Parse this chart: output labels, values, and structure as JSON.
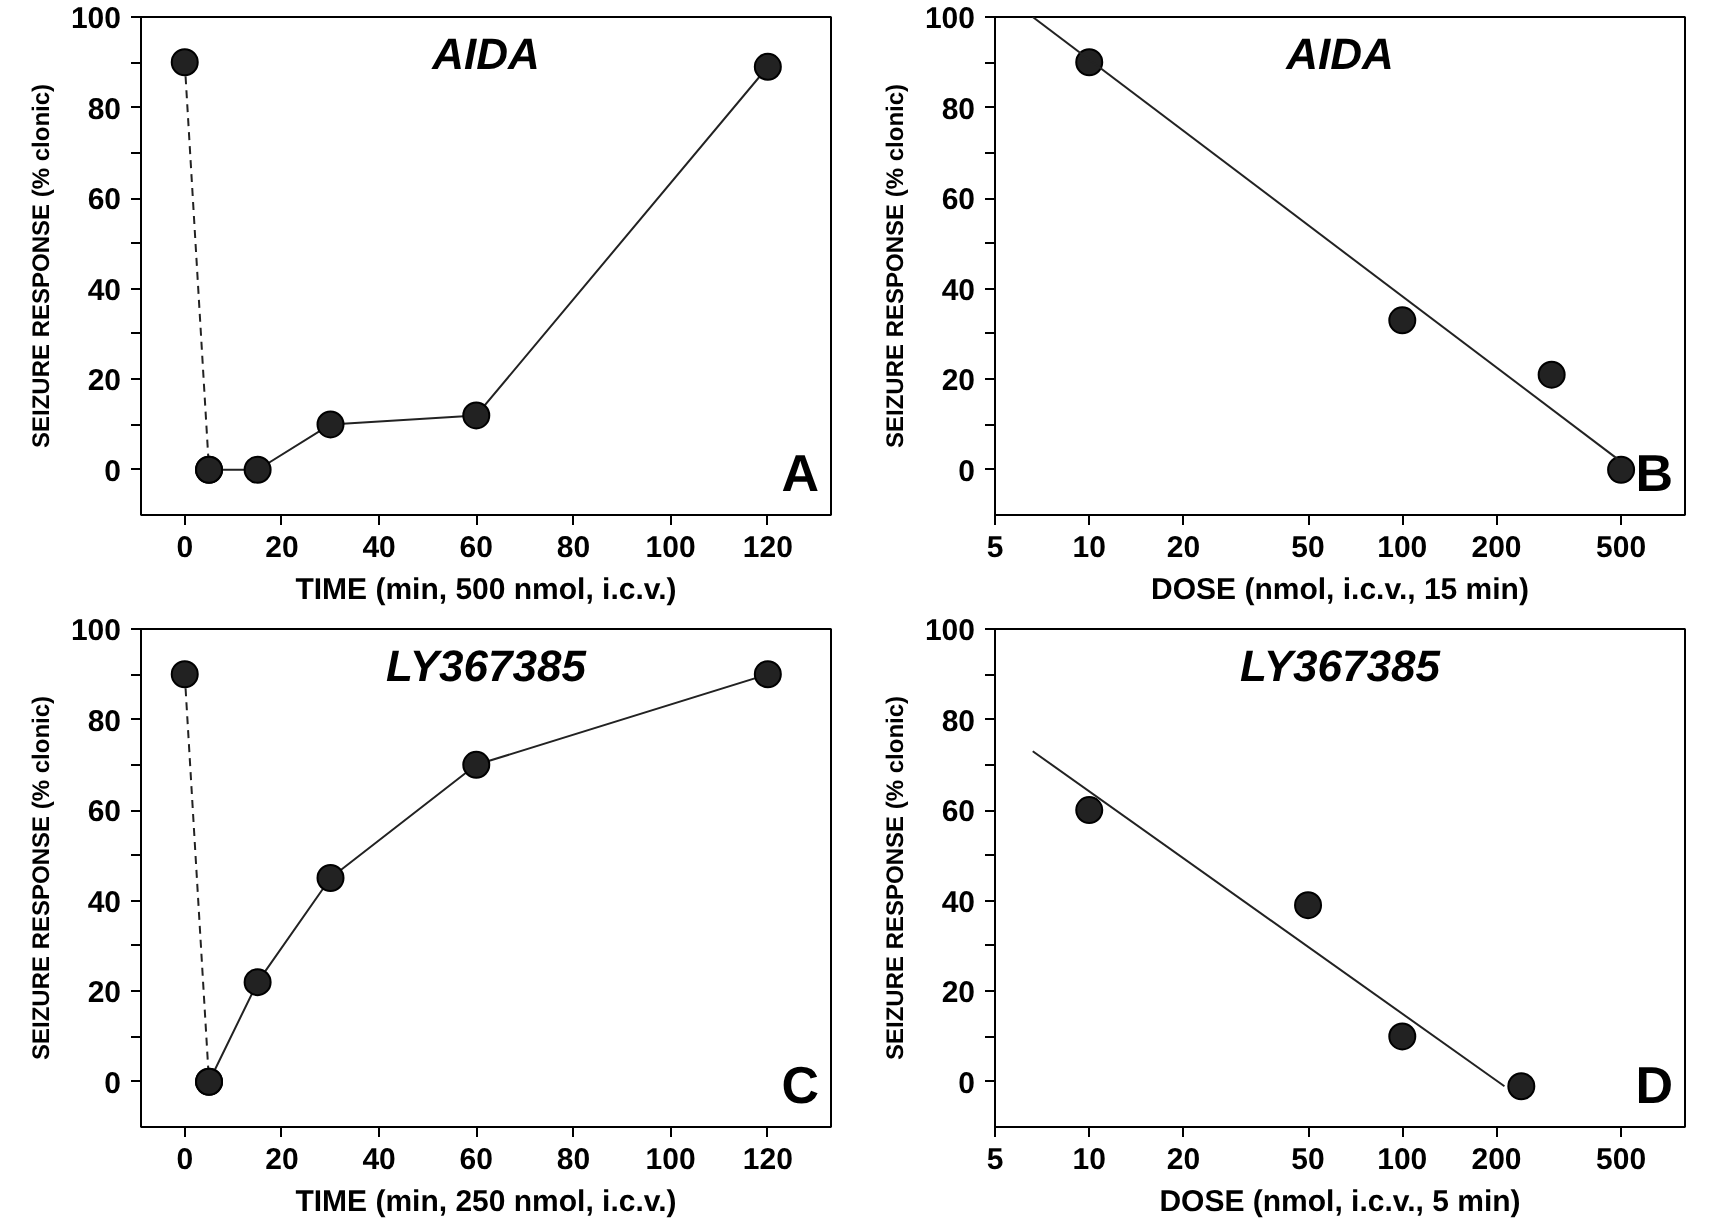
{
  "chart_data": [
    {
      "type": "line",
      "title": "AIDA",
      "xlabel": "TIME (min, 500 nmol, i.c.v.)",
      "ylabel": "SEIZURE RESPONSE (% clonic)",
      "annotations": [
        "A"
      ],
      "xlim": [
        -9,
        133
      ],
      "ylim": [
        -10,
        100
      ],
      "xticks": [
        0,
        20,
        40,
        60,
        80,
        100,
        120
      ],
      "yticks": [
        0,
        {
          "value": 10,
          "label": null
        },
        20,
        {
          "value": 30,
          "label": null
        },
        40,
        {
          "value": 50,
          "label": null
        },
        60,
        {
          "value": 70,
          "label": null
        },
        80,
        {
          "value": 90,
          "label": null
        },
        100
      ],
      "series": [
        {
          "x": [
            0,
            5
          ],
          "values": [
            90,
            0
          ],
          "color": "#222222",
          "marker": "circle",
          "line_style": "dashed"
        },
        {
          "x": [
            5,
            15,
            30,
            60,
            120
          ],
          "values": [
            0,
            0,
            10,
            12,
            89
          ],
          "color": "#222222",
          "marker": "circle",
          "line_style": "solid"
        }
      ]
    },
    {
      "type": "scatter",
      "log": "x",
      "title": "AIDA",
      "xlabel": "DOSE (nmol, i.c.v., 15 min)",
      "ylabel": "SEIZURE RESPONSE (% clonic)",
      "annotations": [
        "B"
      ],
      "xlim": [
        5,
        800
      ],
      "ylim": [
        -10,
        100
      ],
      "xticks": [
        5,
        10,
        20,
        50,
        100,
        200,
        500
      ],
      "yticks": [
        0,
        {
          "value": 10,
          "label": null
        },
        20,
        {
          "value": 30,
          "label": null
        },
        40,
        {
          "value": 50,
          "label": null
        },
        60,
        {
          "value": 70,
          "label": null
        },
        80,
        {
          "value": 90,
          "label": null
        },
        100
      ],
      "series": [
        {
          "x": [
            10,
            100,
            300,
            500
          ],
          "values": [
            90,
            33,
            21,
            0
          ],
          "color": "#222222",
          "marker": "circle"
        },
        {
          "type": "line",
          "x": [
            6.6,
            495
          ],
          "values": [
            100,
            2
          ],
          "color": "#222222",
          "marker": "none",
          "line_style": "solid"
        }
      ]
    },
    {
      "type": "line",
      "title": "LY367385",
      "xlabel": "TIME (min, 250 nmol, i.c.v.)",
      "ylabel": "SEIZURE RESPONSE (% clonic)",
      "annotations": [
        "C"
      ],
      "xlim": [
        -9,
        133
      ],
      "ylim": [
        -10,
        100
      ],
      "xticks": [
        0,
        20,
        40,
        60,
        80,
        100,
        120
      ],
      "yticks": [
        0,
        {
          "value": 10,
          "label": null
        },
        20,
        {
          "value": 30,
          "label": null
        },
        40,
        {
          "value": 50,
          "label": null
        },
        60,
        {
          "value": 70,
          "label": null
        },
        80,
        {
          "value": 90,
          "label": null
        },
        100
      ],
      "series": [
        {
          "x": [
            0,
            5
          ],
          "values": [
            90,
            0
          ],
          "color": "#222222",
          "marker": "circle",
          "line_style": "dashed"
        },
        {
          "x": [
            5,
            15,
            30,
            60,
            120
          ],
          "values": [
            0,
            22,
            45,
            70,
            90
          ],
          "color": "#222222",
          "marker": "circle",
          "line_style": "solid"
        }
      ]
    },
    {
      "type": "scatter",
      "log": "x",
      "title": "LY367385",
      "xlabel": "DOSE (nmol, i.c.v., 5 min)",
      "ylabel": "SEIZURE RESPONSE (% clonic)",
      "annotations": [
        "D"
      ],
      "xlim": [
        5,
        800
      ],
      "ylim": [
        -10,
        100
      ],
      "xticks": [
        5,
        10,
        20,
        50,
        100,
        200,
        500
      ],
      "yticks": [
        0,
        {
          "value": 10,
          "label": null
        },
        20,
        {
          "value": 30,
          "label": null
        },
        40,
        {
          "value": 50,
          "label": null
        },
        60,
        {
          "value": 70,
          "label": null
        },
        80,
        {
          "value": 90,
          "label": null
        },
        100
      ],
      "series": [
        {
          "x": [
            10,
            50,
            100,
            240
          ],
          "values": [
            60,
            39,
            10,
            -1
          ],
          "color": "#222222",
          "marker": "circle"
        },
        {
          "type": "line",
          "x": [
            6.6,
            212
          ],
          "values": [
            73,
            -1
          ],
          "color": "#222222",
          "marker": "none",
          "line_style": "solid"
        }
      ]
    }
  ]
}
